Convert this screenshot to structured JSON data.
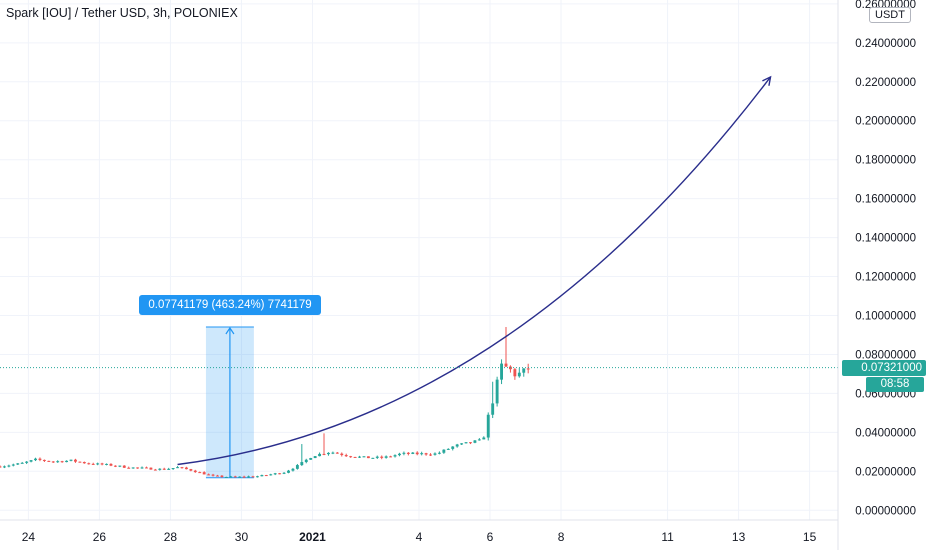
{
  "header": {
    "title": "Spark [IOU] / Tether USD, 3h, POLONIEX",
    "currency": "USDT"
  },
  "price_axis": {
    "last_price": "0.07321000",
    "countdown": "08:58"
  },
  "measure_tool": {
    "label": "0.07741179 (463.24%) 7741179",
    "low": 0.0167,
    "high": 0.0941
  },
  "colors": {
    "up": "#26a69a",
    "down": "#ef5350",
    "accent": "#2196f3",
    "curve": "#2a2e8c",
    "grid": "#f0f3fa"
  },
  "chart_data": {
    "type": "candlestick",
    "title": "Spark [IOU] / Tether USD, 3h, POLONIEX",
    "y_ticks": [
      "0.00000000",
      "0.02000000",
      "0.04000000",
      "0.06000000",
      "0.08000000",
      "0.10000000",
      "0.12000000",
      "0.14000000",
      "0.16000000",
      "0.18000000",
      "0.20000000",
      "0.22000000",
      "0.24000000",
      "0.26000000"
    ],
    "ylim": [
      -0.005,
      0.262
    ],
    "x_ticks": [
      {
        "label": "24",
        "day": 24,
        "bold": false
      },
      {
        "label": "26",
        "day": 26,
        "bold": false
      },
      {
        "label": "28",
        "day": 28,
        "bold": false
      },
      {
        "label": "30",
        "day": 30,
        "bold": false
      },
      {
        "label": "2021",
        "day": 32,
        "bold": true
      },
      {
        "label": "4",
        "day": 35,
        "bold": false
      },
      {
        "label": "6",
        "day": 37,
        "bold": false
      },
      {
        "label": "8",
        "day": 39,
        "bold": false
      },
      {
        "label": "11",
        "day": 42,
        "bold": false
      },
      {
        "label": "13",
        "day": 44,
        "bold": false
      },
      {
        "label": "15",
        "day": 46,
        "bold": false
      }
    ],
    "xlim": [
      23.2,
      46.8
    ],
    "close_anchors": [
      [
        23.2,
        0.0225
      ],
      [
        23.8,
        0.024
      ],
      [
        24.2,
        0.026
      ],
      [
        24.7,
        0.025
      ],
      [
        25.2,
        0.0255
      ],
      [
        25.7,
        0.024
      ],
      [
        26.3,
        0.0232
      ],
      [
        26.8,
        0.022
      ],
      [
        27.3,
        0.0215
      ],
      [
        27.8,
        0.021
      ],
      [
        28.2,
        0.022
      ],
      [
        28.6,
        0.0205
      ],
      [
        29.2,
        0.0175
      ],
      [
        29.8,
        0.017
      ],
      [
        30.5,
        0.0175
      ],
      [
        31.2,
        0.0195
      ],
      [
        31.6,
        0.023
      ],
      [
        32.0,
        0.028
      ],
      [
        32.5,
        0.03
      ],
      [
        33.0,
        0.028
      ],
      [
        33.5,
        0.027
      ],
      [
        34.0,
        0.027
      ],
      [
        34.5,
        0.029
      ],
      [
        35.0,
        0.029
      ],
      [
        35.5,
        0.029
      ],
      [
        36.0,
        0.033
      ],
      [
        36.5,
        0.035
      ],
      [
        36.8,
        0.036
      ],
      [
        36.95,
        0.048
      ],
      [
        37.1,
        0.058
      ],
      [
        37.2,
        0.065
      ],
      [
        37.3,
        0.074
      ],
      [
        37.5,
        0.073
      ],
      [
        37.7,
        0.07
      ],
      [
        37.9,
        0.07
      ],
      [
        38.1,
        0.0732
      ]
    ],
    "wick_spikes": [
      {
        "day": 32.35,
        "high": 0.0395
      },
      {
        "day": 37.4,
        "high": 0.0941
      },
      {
        "day": 31.7,
        "high": 0.034
      },
      {
        "day": 37.05,
        "high": 0.066
      }
    ],
    "curve_arrow": {
      "start": [
        28.2,
        0.0235
      ],
      "control": [
        37.5,
        0.045
      ],
      "end": [
        44.9,
        0.2225
      ]
    }
  }
}
